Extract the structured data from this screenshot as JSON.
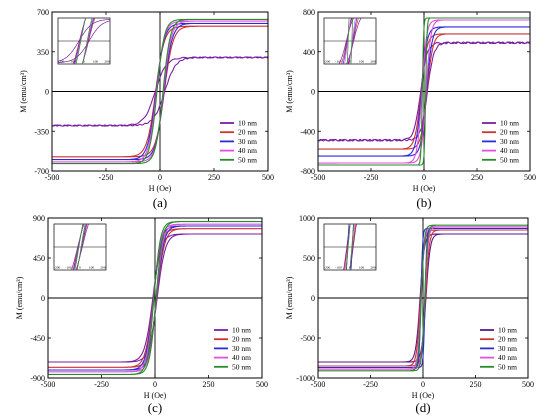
{
  "chart_data": [
    {
      "panel": "(a)",
      "type": "line",
      "xlabel": "H (Oe)",
      "ylabel": "M (emu/cm³)",
      "xlim": [
        -500,
        500
      ],
      "ylim": [
        -700,
        700
      ],
      "xticks": [
        "-500",
        "-250",
        "0",
        "250",
        "500"
      ],
      "yticks": [
        "-700",
        "-350",
        "0",
        "350",
        "700"
      ],
      "legend_position": "bottom-right",
      "series": [
        {
          "name": "10 nm",
          "color": "#7b1fa2",
          "ms": 300,
          "hc": 22,
          "w": 50
        },
        {
          "name": "20 nm",
          "color": "#cc3333",
          "ms": 575,
          "hc": 20,
          "w": 40
        },
        {
          "name": "30 nm",
          "color": "#2b2bd8",
          "ms": 600,
          "hc": 18,
          "w": 38
        },
        {
          "name": "40 nm",
          "color": "#e14fe1",
          "ms": 620,
          "hc": 16,
          "w": 36
        },
        {
          "name": "50 nm",
          "color": "#2a8a2a",
          "ms": 635,
          "hc": 14,
          "w": 34
        }
      ],
      "inset": {
        "position": "top-left",
        "xticks": [
          "-200",
          "-100",
          "0",
          "100",
          "200"
        ]
      }
    },
    {
      "panel": "(b)",
      "type": "line",
      "xlabel": "H (Oe)",
      "ylabel": "M (emu/cm³)",
      "xlim": [
        -500,
        500
      ],
      "ylim": [
        -800,
        800
      ],
      "xticks": [
        "-500",
        "-250",
        "0",
        "250",
        "500"
      ],
      "yticks": [
        "-800",
        "-400",
        "0",
        "400",
        "800"
      ],
      "legend_position": "bottom-right",
      "series": [
        {
          "name": "10 nm",
          "color": "#7b1fa2",
          "ms": 490,
          "hc": 16,
          "w": 30
        },
        {
          "name": "20 nm",
          "color": "#cc3333",
          "ms": 580,
          "hc": 14,
          "w": 28
        },
        {
          "name": "30 nm",
          "color": "#2b2bd8",
          "ms": 650,
          "hc": 12,
          "w": 26
        },
        {
          "name": "40 nm",
          "color": "#e14fe1",
          "ms": 720,
          "hc": 10,
          "w": 22
        },
        {
          "name": "50 nm",
          "color": "#2a8a2a",
          "ms": 740,
          "hc": 8,
          "w": 6
        }
      ],
      "inset": {
        "position": "top-left",
        "xticks": [
          "-200",
          "-100",
          "0",
          "100",
          "200"
        ]
      }
    },
    {
      "panel": "(c)",
      "type": "line",
      "xlabel": "H (Oe)",
      "ylabel": "M (emu/cm³)",
      "xlim": [
        -500,
        500
      ],
      "ylim": [
        -900,
        900
      ],
      "xticks": [
        "-500",
        "-250",
        "0",
        "250",
        "500"
      ],
      "yticks": [
        "-900",
        "-450",
        "0",
        "450",
        "900"
      ],
      "legend_position": "bottom-right",
      "series": [
        {
          "name": "10 nm",
          "color": "#7b1fa2",
          "ms": 720,
          "hc": 10,
          "w": 38
        },
        {
          "name": "20 nm",
          "color": "#cc3333",
          "ms": 780,
          "hc": 8,
          "w": 36
        },
        {
          "name": "30 nm",
          "color": "#2b2bd8",
          "ms": 810,
          "hc": 7,
          "w": 34
        },
        {
          "name": "40 nm",
          "color": "#e14fe1",
          "ms": 830,
          "hc": 6,
          "w": 32
        },
        {
          "name": "50 nm",
          "color": "#2a8a2a",
          "ms": 860,
          "hc": 5,
          "w": 30
        }
      ],
      "inset": {
        "position": "top-left",
        "xticks": [
          "-200",
          "-100",
          "0",
          "100",
          "200"
        ]
      }
    },
    {
      "panel": "(d)",
      "type": "line",
      "xlabel": "H (Oe)",
      "ylabel": "M (emu/cm³)",
      "xlim": [
        -500,
        500
      ],
      "ylim": [
        -1000,
        1000
      ],
      "xticks": [
        "-500",
        "-250",
        "0",
        "250",
        "500"
      ],
      "yticks": [
        "-1000",
        "-500",
        "0",
        "500",
        "1000"
      ],
      "legend_position": "bottom-right",
      "series": [
        {
          "name": "10 nm",
          "color": "#5a1a8a",
          "ms": 800,
          "hc": 14,
          "w": 20
        },
        {
          "name": "20 nm",
          "color": "#cc3333",
          "ms": 850,
          "hc": 12,
          "w": 18
        },
        {
          "name": "30 nm",
          "color": "#2b2bd8",
          "ms": 870,
          "hc": 10,
          "w": 8
        },
        {
          "name": "40 nm",
          "color": "#e14fe1",
          "ms": 890,
          "hc": 9,
          "w": 16
        },
        {
          "name": "50 nm",
          "color": "#2a8a2a",
          "ms": 910,
          "hc": 8,
          "w": 14
        }
      ],
      "inset": {
        "position": "top-left",
        "xticks": [
          "-200",
          "-100",
          "0",
          "100",
          "200"
        ]
      }
    }
  ]
}
